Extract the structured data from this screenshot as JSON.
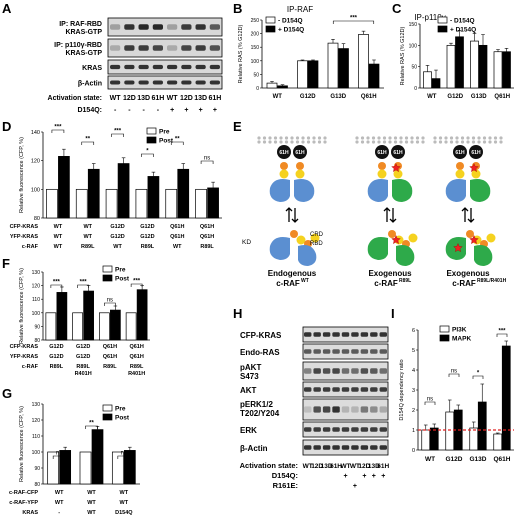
{
  "panelA": {
    "letter": "A",
    "rows": [
      "IP: RAF-RBD KRAS-GTP",
      "IP: p110γ-RBD KRAS-GTP",
      "KRAS",
      "β-Actin"
    ],
    "rows_line1": [
      "IP: RAF-RBD",
      "IP: p110γ-RBD",
      "KRAS",
      "β-Actin"
    ],
    "rows_line2": [
      "KRAS-GTP",
      "KRAS-GTP",
      "",
      ""
    ],
    "activation_label": "Activation state:",
    "activation": [
      "WT",
      "12D",
      "13D",
      "61H",
      "WT",
      "12D",
      "13D",
      "61H"
    ],
    "d154q_label": "D154Q:",
    "d154q": [
      "-",
      "-",
      "-",
      "-",
      "+",
      "+",
      "+",
      "+"
    ]
  },
  "panelB": {
    "letter": "B",
    "title": "IP-RAF",
    "ylabel": "Relative RAS (% G12D)",
    "sig": "***",
    "legend": [
      "- D154Q",
      "+ D154Q"
    ]
  },
  "panelC": {
    "letter": "C",
    "title": "IP-p110γ",
    "ylabel": "Relative RAS (% G12D)",
    "legend": [
      "- D154Q",
      "+ D154Q"
    ]
  },
  "panelD": {
    "letter": "D",
    "ylabel": "Relative fluorescence (CFP, %)",
    "legend": [
      "Pre",
      "Post"
    ],
    "sig": [
      "***",
      "**",
      "***",
      "*",
      "**",
      "ns"
    ],
    "row_labels": [
      "CFP-KRAS",
      "YFP-KRAS",
      "c-RAF"
    ],
    "cfp": [
      "WT",
      "WT",
      "G12D",
      "G12D",
      "Q61H",
      "Q61H"
    ],
    "yfp": [
      "WT",
      "WT",
      "G12D",
      "G12D",
      "Q61H",
      "Q61H"
    ],
    "craf": [
      "WT",
      "R89L",
      "WT",
      "R89L",
      "WT",
      "R89L"
    ]
  },
  "panelE": {
    "letter": "E",
    "labels": [
      "61H",
      "61H",
      "61H",
      "61H",
      "61H",
      "61H"
    ],
    "kd": "KD",
    "crd": "CRD",
    "rbd": "RBD",
    "titles_line1": [
      "Endogenous",
      "Exogenous",
      "Exogenous"
    ],
    "titles_line2": [
      "c-RAF",
      "c-RAF",
      "c-RAF"
    ],
    "titles_sup": [
      "WT",
      "R89L",
      "R89L/R401H"
    ]
  },
  "panelF": {
    "letter": "F",
    "ylabel": "Relative fluorescence (CFP, %)",
    "legend": [
      "Pre",
      "Post"
    ],
    "sig": [
      "***",
      "***",
      "ns",
      "***"
    ],
    "row_labels": [
      "CFP-KRAS",
      "YFP-KRAS",
      "c-RAF"
    ],
    "cfp": [
      "G12D",
      "G12D",
      "Q61H",
      "Q61H"
    ],
    "yfp": [
      "G12D",
      "G12D",
      "Q61H",
      "Q61H"
    ],
    "craf_line1": [
      "R89L",
      "R89L",
      "R89L",
      "R89L"
    ],
    "craf_line2": [
      "",
      "R401H",
      "",
      "R401H"
    ]
  },
  "panelG": {
    "letter": "G",
    "ylabel": "Relative fluorescence (CFP, %)",
    "legend": [
      "Pre",
      "Post"
    ],
    "sig": [
      "ns",
      "**",
      "ns"
    ],
    "row_labels": [
      "c-RAF-CFP",
      "c-RAF-YFP",
      "KRAS"
    ],
    "cfp": [
      "WT",
      "WT",
      "WT"
    ],
    "yfp": [
      "WT",
      "WT",
      "WT"
    ],
    "kras": [
      "-",
      "WT",
      "D154Q"
    ]
  },
  "panelH": {
    "letter": "H",
    "rows": [
      "CFP-KRAS",
      "Endo-RAS",
      "pAKT S473",
      "AKT",
      "pERK1/2 T202/Y204",
      "ERK",
      "β-Actin"
    ],
    "rows_line1": [
      "CFP-KRAS",
      "Endo-RAS",
      "pAKT",
      "AKT",
      "pERK1/2",
      "ERK",
      "β-Actin"
    ],
    "rows_line2": [
      "",
      "",
      "S473",
      "",
      "T202/Y204",
      "",
      ""
    ],
    "activation_label": "Activation state:",
    "activation": [
      "WT",
      "12D",
      "13D",
      "61H",
      "WT",
      "WT",
      "12D",
      "13D",
      "61H"
    ],
    "d154q_label": "D154Q:",
    "d154q": [
      "",
      "",
      "",
      "",
      "+",
      "",
      "+",
      "+",
      "+"
    ],
    "r161e_label": "R161E:",
    "r161e": [
      "",
      "",
      "",
      "",
      "",
      "+",
      "",
      "",
      ""
    ]
  },
  "panelI": {
    "letter": "I",
    "ylabel": "D154Q dependency ratio",
    "legend": [
      "PI3K",
      "MAPK"
    ],
    "sig": [
      "ns",
      "ns",
      "*",
      "***"
    ]
  },
  "chart_data": [
    {
      "id": "B",
      "type": "bar",
      "title": "IP-RAF",
      "ylabel": "Relative RAS (% G12D)",
      "categories": [
        "WT",
        "G12D",
        "G13D",
        "Q61H"
      ],
      "series": [
        {
          "name": "- D154Q",
          "values": [
            18,
            100,
            165,
            197
          ],
          "err": [
            6,
            3,
            14,
            12
          ]
        },
        {
          "name": "+ D154Q",
          "values": [
            8,
            100,
            145,
            88
          ],
          "err": [
            4,
            3,
            18,
            15
          ]
        }
      ],
      "ylim": [
        0,
        250
      ],
      "yticks": [
        0,
        50,
        100,
        150,
        200,
        250
      ]
    },
    {
      "id": "C",
      "type": "bar",
      "title": "IP-p110γ",
      "ylabel": "Relative RAS (% G12D)",
      "categories": [
        "WT",
        "G12D",
        "G13D",
        "Q61H"
      ],
      "series": [
        {
          "name": "- D154Q",
          "values": [
            38,
            100,
            110,
            85
          ],
          "err": [
            15,
            5,
            18,
            5
          ]
        },
        {
          "name": "+ D154Q",
          "values": [
            22,
            120,
            100,
            85
          ],
          "err": [
            20,
            15,
            25,
            8
          ]
        }
      ],
      "ylim": [
        0,
        150
      ],
      "yticks": [
        0,
        50,
        100,
        150
      ]
    },
    {
      "id": "D",
      "type": "bar",
      "ylabel": "Relative fluorescence (CFP, %)",
      "categories": [
        "WT/WT/WT",
        "WT/WT/R89L",
        "G12D/G12D/WT",
        "G12D/G12D/R89L",
        "Q61H/Q61H/WT",
        "Q61H/Q61H/R89L"
      ],
      "series": [
        {
          "name": "Pre",
          "values": [
            100,
            100,
            100,
            100,
            100,
            100
          ]
        },
        {
          "name": "Post",
          "values": [
            123,
            114,
            118,
            109,
            114,
            101
          ],
          "err": [
            5,
            4,
            4,
            3,
            4,
            4
          ]
        }
      ],
      "ylim": [
        80,
        140
      ],
      "yticks": [
        80,
        100,
        120,
        140
      ]
    },
    {
      "id": "F",
      "type": "bar",
      "ylabel": "Relative fluorescence (CFP, %)",
      "categories": [
        "G12D/G12D/R89L",
        "G12D/G12D/R89L R401H",
        "Q61H/Q61H/R89L",
        "Q61H/Q61H/R89L R401H"
      ],
      "series": [
        {
          "name": "Pre",
          "values": [
            100,
            100,
            100,
            100
          ]
        },
        {
          "name": "Post",
          "values": [
            115,
            116,
            102,
            117
          ],
          "err": [
            4,
            4,
            3,
            3
          ]
        }
      ],
      "ylim": [
        80,
        130
      ],
      "yticks": [
        80,
        90,
        100,
        110,
        120,
        130
      ]
    },
    {
      "id": "G",
      "type": "bar",
      "ylabel": "Relative fluorescence (CFP, %)",
      "categories": [
        "WT/WT/-",
        "WT/WT/WT",
        "WT/WT/D154Q"
      ],
      "series": [
        {
          "name": "Pre",
          "values": [
            100,
            100,
            100
          ]
        },
        {
          "name": "Post",
          "values": [
            101,
            114,
            101
          ],
          "err": [
            2,
            2,
            2
          ]
        }
      ],
      "ylim": [
        80,
        130
      ],
      "yticks": [
        80,
        90,
        100,
        110,
        120,
        130
      ]
    },
    {
      "id": "I",
      "type": "bar",
      "ylabel": "D154Q dependency ratio",
      "categories": [
        "WT",
        "G12D",
        "G13D",
        "Q61H"
      ],
      "series": [
        {
          "name": "PI3K",
          "values": [
            1.0,
            1.9,
            1.1,
            0.8
          ],
          "err": [
            0.25,
            0.6,
            0.3,
            0.05
          ]
        },
        {
          "name": "MAPK",
          "values": [
            1.1,
            2.0,
            2.4,
            5.2
          ],
          "err": [
            0.2,
            0.25,
            0.9,
            0.25
          ]
        }
      ],
      "ylim": [
        0,
        6
      ],
      "yticks": [
        0,
        1,
        2,
        3,
        4,
        5,
        6
      ],
      "reference_line": 1.0
    }
  ]
}
